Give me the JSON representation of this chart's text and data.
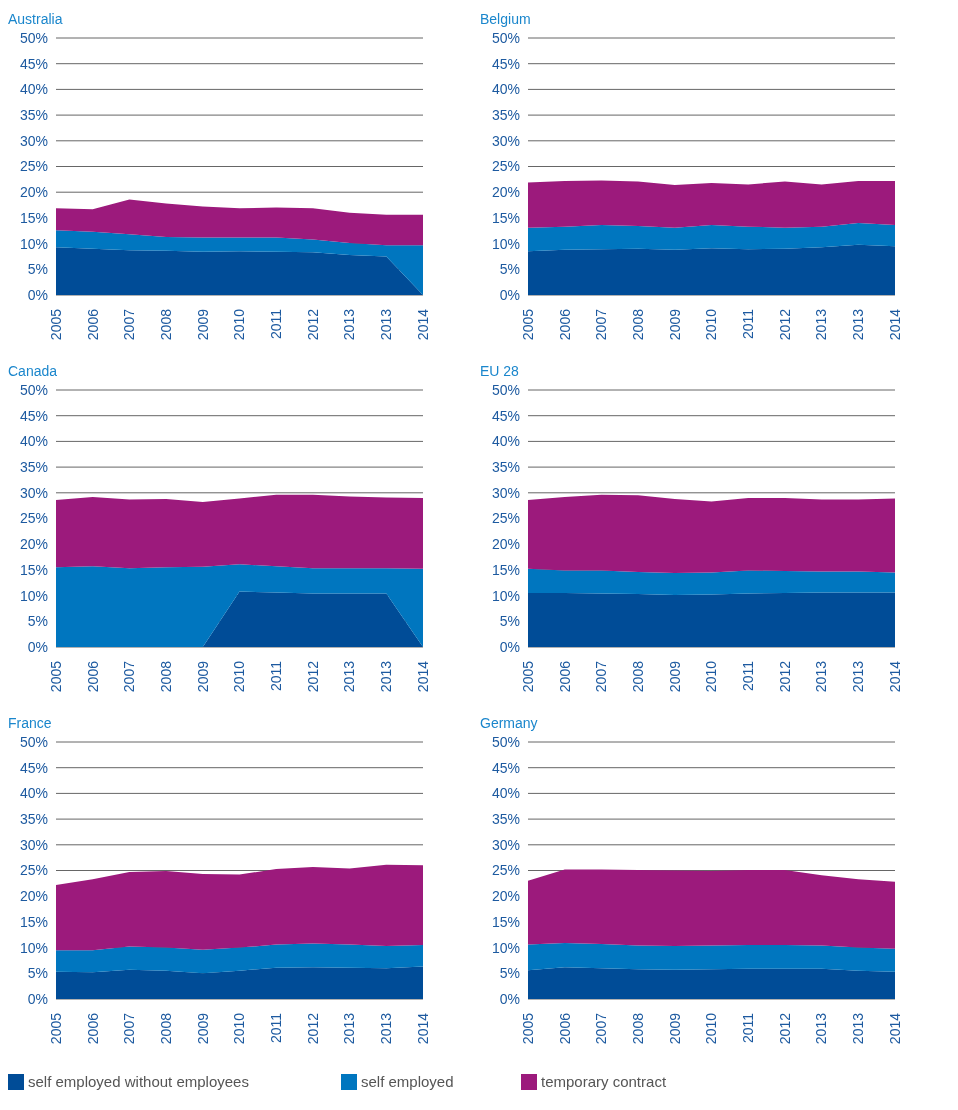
{
  "chart_data": [
    {
      "type": "area",
      "title": "Australia",
      "stacked": true,
      "grid": "y",
      "categories": [
        "2005",
        "2006",
        "2007",
        "2008",
        "2009",
        "2010",
        "2011",
        "2012",
        "2013",
        "2013",
        "2014"
      ],
      "ylim": [
        0,
        50
      ],
      "yticks": [
        {
          "value": 0,
          "label": "0%"
        },
        {
          "value": 5,
          "label": "5%"
        },
        {
          "value": 10,
          "label": "10%"
        },
        {
          "value": 15,
          "label": "15%"
        },
        {
          "value": 20,
          "label": "20%"
        },
        {
          "value": 25,
          "label": "25%"
        },
        {
          "value": 30,
          "label": "30%"
        },
        {
          "value": 35,
          "label": "35%"
        },
        {
          "value": 40,
          "label": "40%"
        },
        {
          "value": 45,
          "label": "45%"
        },
        {
          "value": 50,
          "label": "50%"
        }
      ],
      "series": [
        {
          "color": "#004c97",
          "values": [
            9.3,
            9.0,
            8.7,
            8.6,
            8.4,
            8.5,
            8.4,
            8.3,
            7.8,
            7.5,
            0
          ]
        },
        {
          "color": "#0076bf",
          "values": [
            3.3,
            3.3,
            3.1,
            2.7,
            2.8,
            2.7,
            2.8,
            2.5,
            2.3,
            2.2,
            9.7
          ]
        },
        {
          "color": "#9c1a7c",
          "values": [
            4.3,
            4.4,
            6.8,
            6.5,
            6.0,
            5.7,
            5.8,
            6.1,
            5.9,
            5.9,
            5.9
          ]
        }
      ]
    },
    {
      "type": "area",
      "title": "Belgium",
      "stacked": true,
      "grid": "y",
      "categories": [
        "2005",
        "2006",
        "2007",
        "2008",
        "2009",
        "2010",
        "2011",
        "2012",
        "2013",
        "2013",
        "2014"
      ],
      "ylim": [
        0,
        50
      ],
      "yticks": [
        {
          "value": 0,
          "label": "0%"
        },
        {
          "value": 5,
          "label": "5%"
        },
        {
          "value": 10,
          "label": "10%"
        },
        {
          "value": 15,
          "label": "15%"
        },
        {
          "value": 20,
          "label": "20%"
        },
        {
          "value": 25,
          "label": "25%"
        },
        {
          "value": 30,
          "label": "30%"
        },
        {
          "value": 35,
          "label": "35%"
        },
        {
          "value": 40,
          "label": "40%"
        },
        {
          "value": 45,
          "label": "45%"
        },
        {
          "value": 50,
          "label": "50%"
        }
      ],
      "series": [
        {
          "color": "#004c97",
          "values": [
            8.5,
            8.8,
            8.9,
            9.0,
            8.8,
            9.1,
            8.9,
            9.0,
            9.3,
            9.8,
            9.5
          ]
        },
        {
          "color": "#0076bf",
          "values": [
            4.6,
            4.5,
            4.7,
            4.4,
            4.3,
            4.5,
            4.4,
            4.1,
            4.0,
            4.2,
            4.1
          ]
        },
        {
          "color": "#9c1a7c",
          "values": [
            8.8,
            8.9,
            8.7,
            8.7,
            8.3,
            8.2,
            8.2,
            9.0,
            8.2,
            8.2,
            8.6
          ]
        }
      ]
    },
    {
      "type": "area",
      "title": "Canada",
      "stacked": true,
      "grid": "y",
      "categories": [
        "2005",
        "2006",
        "2007",
        "2008",
        "2009",
        "2010",
        "2011",
        "2012",
        "2013",
        "2013",
        "2014"
      ],
      "ylim": [
        0,
        50
      ],
      "yticks": [
        {
          "value": 0,
          "label": "0%"
        },
        {
          "value": 5,
          "label": "5%"
        },
        {
          "value": 10,
          "label": "10%"
        },
        {
          "value": 15,
          "label": "15%"
        },
        {
          "value": 20,
          "label": "20%"
        },
        {
          "value": 25,
          "label": "25%"
        },
        {
          "value": 30,
          "label": "30%"
        },
        {
          "value": 35,
          "label": "35%"
        },
        {
          "value": 40,
          "label": "40%"
        },
        {
          "value": 45,
          "label": "45%"
        },
        {
          "value": 50,
          "label": "50%"
        }
      ],
      "series": [
        {
          "color": "#004c97",
          "values": [
            0,
            0,
            0,
            0,
            0,
            10.8,
            10.6,
            10.4,
            10.4,
            10.4,
            0
          ]
        },
        {
          "color": "#0076bf",
          "values": [
            15.5,
            15.7,
            15.3,
            15.5,
            15.6,
            5.3,
            5.1,
            4.9,
            4.9,
            4.9,
            15.2
          ]
        },
        {
          "color": "#9c1a7c",
          "values": [
            13.1,
            13.5,
            13.4,
            13.3,
            12.6,
            12.8,
            13.9,
            14.3,
            14.0,
            13.8,
            13.8
          ]
        }
      ]
    },
    {
      "type": "area",
      "title": "EU 28",
      "stacked": true,
      "grid": "y",
      "categories": [
        "2005",
        "2006",
        "2007",
        "2008",
        "2009",
        "2010",
        "2011",
        "2012",
        "2013",
        "2013",
        "2014"
      ],
      "ylim": [
        0,
        50
      ],
      "yticks": [
        {
          "value": 0,
          "label": "0%"
        },
        {
          "value": 5,
          "label": "5%"
        },
        {
          "value": 10,
          "label": "10%"
        },
        {
          "value": 15,
          "label": "15%"
        },
        {
          "value": 20,
          "label": "20%"
        },
        {
          "value": 25,
          "label": "25%"
        },
        {
          "value": 30,
          "label": "30%"
        },
        {
          "value": 35,
          "label": "35%"
        },
        {
          "value": 40,
          "label": "40%"
        },
        {
          "value": 45,
          "label": "45%"
        },
        {
          "value": 50,
          "label": "50%"
        }
      ],
      "series": [
        {
          "color": "#004c97",
          "values": [
            10.5,
            10.5,
            10.4,
            10.3,
            10.1,
            10.2,
            10.4,
            10.5,
            10.6,
            10.6,
            10.6
          ]
        },
        {
          "color": "#0076bf",
          "values": [
            4.7,
            4.4,
            4.5,
            4.3,
            4.3,
            4.3,
            4.5,
            4.3,
            4.1,
            4.1,
            3.9
          ]
        },
        {
          "color": "#9c1a7c",
          "values": [
            13.4,
            14.3,
            14.7,
            14.9,
            14.4,
            13.8,
            14.1,
            14.2,
            14.0,
            14.0,
            14.4
          ]
        }
      ]
    },
    {
      "type": "area",
      "title": "France",
      "stacked": true,
      "grid": "y",
      "categories": [
        "2005",
        "2006",
        "2007",
        "2008",
        "2009",
        "2010",
        "2011",
        "2012",
        "2013",
        "2013",
        "2014"
      ],
      "ylim": [
        0,
        50
      ],
      "yticks": [
        {
          "value": 0,
          "label": "0%"
        },
        {
          "value": 5,
          "label": "5%"
        },
        {
          "value": 10,
          "label": "10%"
        },
        {
          "value": 15,
          "label": "15%"
        },
        {
          "value": 20,
          "label": "20%"
        },
        {
          "value": 25,
          "label": "25%"
        },
        {
          "value": 30,
          "label": "30%"
        },
        {
          "value": 35,
          "label": "35%"
        },
        {
          "value": 40,
          "label": "40%"
        },
        {
          "value": 45,
          "label": "45%"
        },
        {
          "value": 50,
          "label": "50%"
        }
      ],
      "series": [
        {
          "color": "#004c97",
          "values": [
            5.3,
            5.2,
            5.7,
            5.5,
            5.0,
            5.5,
            6.1,
            6.2,
            6.1,
            6.0,
            6.3
          ]
        },
        {
          "color": "#0076bf",
          "values": [
            4.2,
            4.3,
            4.5,
            4.5,
            4.6,
            4.5,
            4.5,
            4.6,
            4.5,
            4.3,
            4.2
          ]
        },
        {
          "color": "#9c1a7c",
          "values": [
            12.7,
            13.8,
            14.5,
            14.9,
            14.7,
            14.2,
            14.7,
            14.9,
            14.8,
            15.8,
            15.5
          ]
        }
      ]
    },
    {
      "type": "area",
      "title": "Germany",
      "stacked": true,
      "grid": "y",
      "legend": "bottom",
      "categories": [
        "2005",
        "2006",
        "2007",
        "2008",
        "2009",
        "2010",
        "2011",
        "2012",
        "2013",
        "2013",
        "2014"
      ],
      "ylim": [
        0,
        50
      ],
      "yticks": [
        {
          "value": 0,
          "label": "0%"
        },
        {
          "value": 5,
          "label": "5%"
        },
        {
          "value": 10,
          "label": "10%"
        },
        {
          "value": 15,
          "label": "15%"
        },
        {
          "value": 20,
          "label": "20%"
        },
        {
          "value": 25,
          "label": "25%"
        },
        {
          "value": 30,
          "label": "30%"
        },
        {
          "value": 35,
          "label": "35%"
        },
        {
          "value": 40,
          "label": "40%"
        },
        {
          "value": 45,
          "label": "45%"
        },
        {
          "value": 50,
          "label": "50%"
        }
      ],
      "series": [
        {
          "name": "self employed without employees",
          "color": "#004c97",
          "values": [
            5.6,
            6.2,
            6.0,
            5.8,
            5.7,
            5.8,
            5.9,
            5.9,
            5.9,
            5.5,
            5.3
          ]
        },
        {
          "name": "self employed",
          "color": "#0076bf",
          "values": [
            5.0,
            4.7,
            4.7,
            4.6,
            4.6,
            4.6,
            4.6,
            4.6,
            4.5,
            4.5,
            4.5
          ]
        },
        {
          "name": "temporary contract",
          "color": "#9c1a7c",
          "values": [
            12.4,
            14.3,
            14.5,
            14.7,
            14.7,
            14.5,
            14.6,
            14.6,
            13.7,
            13.3,
            13.0
          ]
        }
      ]
    }
  ]
}
